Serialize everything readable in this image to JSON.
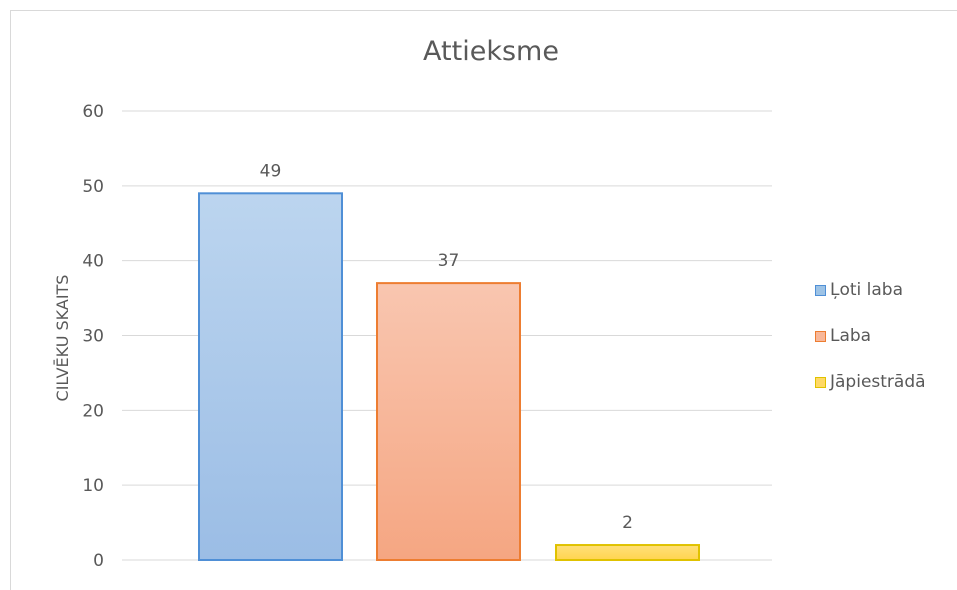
{
  "chart_data": {
    "type": "bar",
    "title": "Attieksme",
    "ylabel": "CILVĒKU SKAITS",
    "xlabel": "",
    "ylim": [
      0,
      60
    ],
    "yticks": [
      0,
      10,
      20,
      30,
      40,
      50,
      60
    ],
    "grid": true,
    "legend_position": "right",
    "series": [
      {
        "name": "Ļoti laba",
        "value": 49,
        "color": "#9dc3e6",
        "border": "#4f8fd6"
      },
      {
        "name": "Laba",
        "value": 37,
        "color": "#f8b89a",
        "border": "#ed7d31"
      },
      {
        "name": "Jāpiestrādā",
        "value": 2,
        "color": "#ffd966",
        "border": "#e0c200"
      }
    ]
  }
}
